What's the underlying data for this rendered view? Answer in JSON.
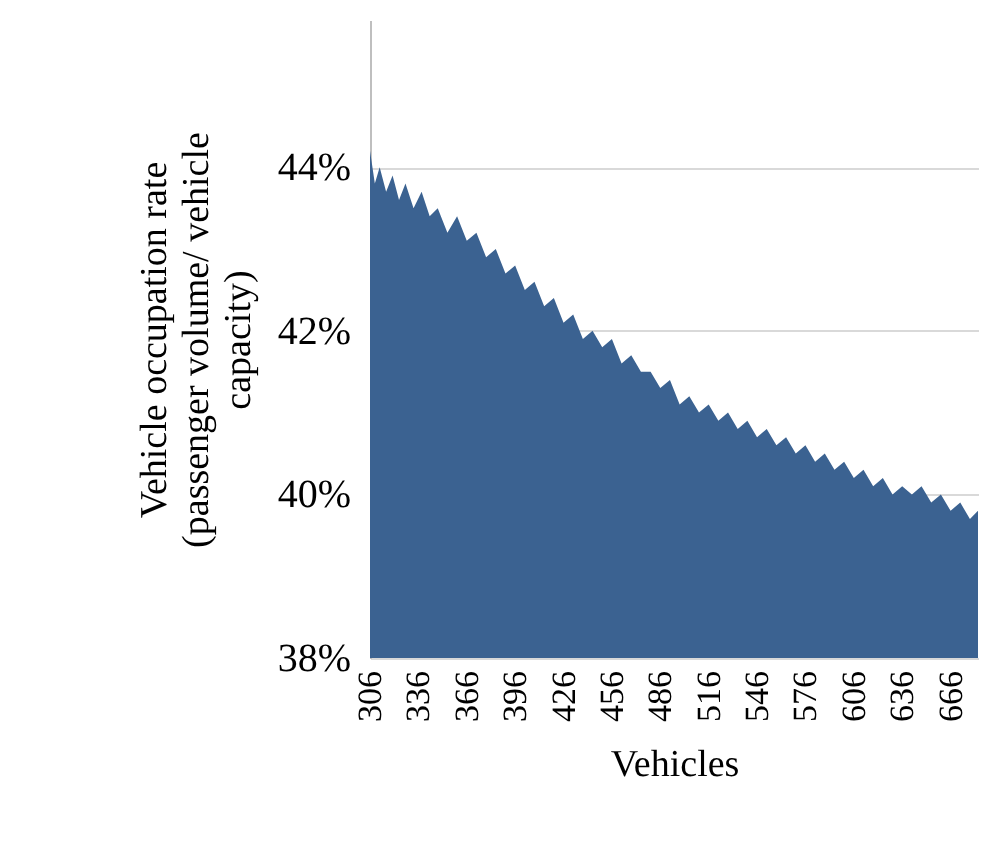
{
  "chart_data": {
    "type": "area",
    "xlabel": "Vehicles",
    "ylabel": "Vehicle occupation rate (passenger volume/ vehicle capacity)",
    "x": [
      306,
      309,
      312,
      316,
      320,
      324,
      328,
      333,
      338,
      343,
      348,
      354,
      360,
      366,
      372,
      378,
      384,
      390,
      396,
      402,
      408,
      414,
      420,
      426,
      432,
      438,
      444,
      450,
      456,
      462,
      468,
      474,
      480,
      486,
      492,
      498,
      504,
      510,
      516,
      522,
      528,
      534,
      540,
      546,
      552,
      558,
      564,
      570,
      576,
      582,
      588,
      594,
      600,
      606,
      612,
      618,
      624,
      630,
      636,
      642,
      648,
      654,
      660,
      666,
      672,
      678,
      683
    ],
    "series": [
      {
        "color": "#3b6291",
        "values": [
          44.2,
          43.8,
          44.0,
          43.7,
          43.9,
          43.6,
          43.8,
          43.5,
          43.7,
          43.4,
          43.5,
          43.2,
          43.4,
          43.1,
          43.2,
          42.9,
          43.0,
          42.7,
          42.8,
          42.5,
          42.6,
          42.3,
          42.4,
          42.1,
          42.2,
          41.9,
          42.0,
          41.8,
          41.9,
          41.6,
          41.7,
          41.5,
          41.5,
          41.3,
          41.4,
          41.1,
          41.2,
          41.0,
          41.1,
          40.9,
          41.0,
          40.8,
          40.9,
          40.7,
          40.8,
          40.6,
          40.7,
          40.5,
          40.6,
          40.4,
          40.5,
          40.3,
          40.4,
          40.2,
          40.3,
          40.1,
          40.2,
          40.0,
          40.1,
          40.0,
          40.1,
          39.9,
          40.0,
          39.8,
          39.9,
          39.7,
          39.8
        ]
      }
    ],
    "xlim": [
      306,
      683
    ],
    "xticks": [
      306,
      336,
      366,
      396,
      426,
      456,
      486,
      516,
      546,
      576,
      606,
      636,
      666
    ],
    "ylim": [
      38,
      45.8
    ],
    "yticks": [
      {
        "value": 38,
        "label": "38%"
      },
      {
        "value": 40,
        "label": "40%"
      },
      {
        "value": 42,
        "label": "42%"
      },
      {
        "value": 44,
        "label": "44%"
      }
    ],
    "grid": "y"
  }
}
